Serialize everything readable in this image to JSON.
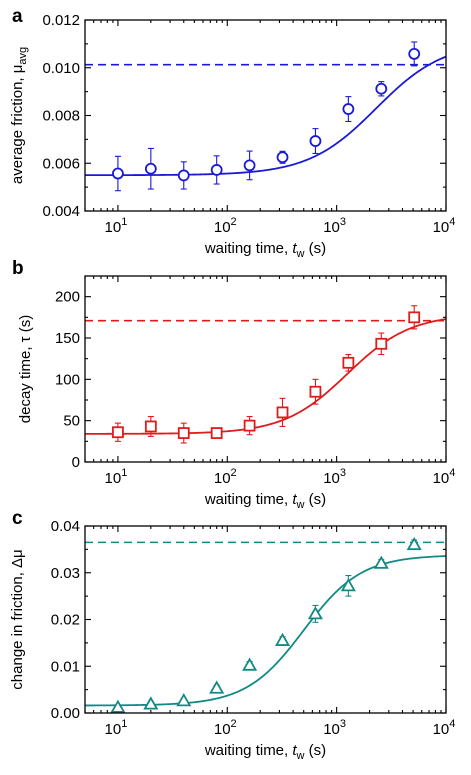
{
  "colors": {
    "panel_a": "#1a1ad6",
    "panel_b": "#e01b1b",
    "panel_c": "#128a84"
  },
  "chart_data": [
    {
      "type": "scatter",
      "panel": "a",
      "xscale": "log",
      "xlim": [
        5,
        10000
      ],
      "ylim": [
        0.004,
        0.012
      ],
      "yticks": [
        0.004,
        0.006,
        0.008,
        0.01,
        0.012
      ],
      "ytick_labels": [
        "0.004",
        "0.006",
        "0.008",
        "0.010",
        "0.012"
      ],
      "xticks": [
        10,
        100,
        1000,
        10000
      ],
      "xtick_labels": [
        {
          "base": "10",
          "exp": "1"
        },
        {
          "base": "10",
          "exp": "2"
        },
        {
          "base": "10",
          "exp": "3"
        },
        {
          "base": "10",
          "exp": "4"
        }
      ],
      "xlabel": {
        "pre": "waiting time, ",
        "sym": "t",
        "sub": "w",
        "post": " (s)"
      },
      "ylabel": {
        "pre": "average friction, μ",
        "sub": "avg"
      },
      "marker": "circle",
      "color": "#1a1ad6",
      "x": [
        10,
        20,
        40,
        80,
        160,
        320,
        640,
        1280,
        2560,
        5120
      ],
      "y": [
        0.00557,
        0.00577,
        0.00549,
        0.00572,
        0.00591,
        0.00625,
        0.00693,
        0.00827,
        0.00912,
        0.01058
      ],
      "yerr": [
        0.00072,
        0.00085,
        0.00057,
        0.00059,
        0.0006,
        0.00025,
        0.00052,
        0.00052,
        0.0003,
        0.0005
      ],
      "fit": {
        "y0": 0.0055,
        "amplitude": 0.0056,
        "x_half": 2300,
        "steepness": 1.4
      },
      "reference_line": 0.01013
    },
    {
      "type": "scatter",
      "panel": "b",
      "xscale": "log",
      "xlim": [
        5,
        10000
      ],
      "ylim": [
        0,
        225
      ],
      "yticks": [
        0,
        50,
        100,
        150,
        200
      ],
      "ytick_labels": [
        "0",
        "50",
        "100",
        "150",
        "200"
      ],
      "xticks": [
        10,
        100,
        1000,
        10000
      ],
      "xtick_labels": [
        {
          "base": "10",
          "exp": "1"
        },
        {
          "base": "10",
          "exp": "2"
        },
        {
          "base": "10",
          "exp": "3"
        },
        {
          "base": "10",
          "exp": "4"
        }
      ],
      "xlabel": {
        "pre": "waiting time, ",
        "sym": "t",
        "sub": "w",
        "post": " (s)"
      },
      "ylabel": {
        "pre": "decay time, τ (s)",
        "sub": ""
      },
      "marker": "square",
      "color": "#e01b1b",
      "x": [
        10,
        20,
        40,
        80,
        160,
        320,
        640,
        1280,
        2560,
        5120
      ],
      "y": [
        36,
        43,
        35,
        35,
        44,
        60,
        85,
        120,
        143,
        175
      ],
      "yerr": [
        11,
        12,
        12,
        6,
        11,
        17,
        15,
        10,
        13,
        14
      ],
      "fit": {
        "y0": 34,
        "amplitude": 145,
        "x_half": 1250,
        "steepness": 1.5
      },
      "reference_line": 171
    },
    {
      "type": "scatter",
      "panel": "c",
      "xscale": "log",
      "xlim": [
        5,
        10000
      ],
      "ylim": [
        0,
        0.04
      ],
      "yticks": [
        0.0,
        0.01,
        0.02,
        0.03,
        0.04
      ],
      "ytick_labels": [
        "0.00",
        "0.01",
        "0.02",
        "0.03",
        "0.04"
      ],
      "xticks": [
        10,
        100,
        1000,
        10000
      ],
      "xtick_labels": [
        {
          "base": "10",
          "exp": "1"
        },
        {
          "base": "10",
          "exp": "2"
        },
        {
          "base": "10",
          "exp": "3"
        },
        {
          "base": "10",
          "exp": "4"
        }
      ],
      "xlabel": {
        "pre": "waiting time, ",
        "sym": "t",
        "sub": "w",
        "post": " (s)"
      },
      "ylabel": {
        "pre": "change in friction, Δμ",
        "sub": ""
      },
      "marker": "triangle",
      "color": "#128a84",
      "x": [
        10,
        20,
        40,
        80,
        160,
        320,
        640,
        1280,
        2560,
        5120
      ],
      "y": [
        0.0012,
        0.0019,
        0.0026,
        0.0053,
        0.0102,
        0.0155,
        0.0212,
        0.0272,
        0.032,
        0.036
      ],
      "yerr": [
        0.0004,
        0.0004,
        0.0004,
        0.0006,
        0.0008,
        0.0008,
        0.0018,
        0.0022,
        0.0008,
        0.001
      ],
      "fit": {
        "y0": 0.0016,
        "amplitude": 0.0322,
        "x_half": 500,
        "steepness": 1.65
      },
      "reference_line": 0.0365
    }
  ],
  "panel_labels": [
    "a",
    "b",
    "c"
  ]
}
